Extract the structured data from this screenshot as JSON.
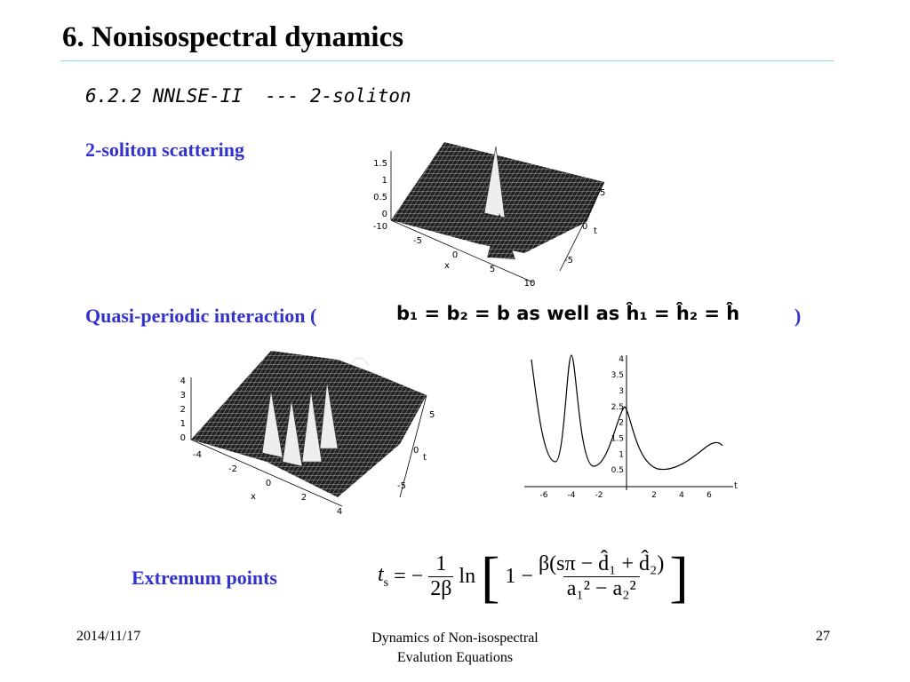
{
  "header": {
    "title": "6. Nonisospectral dynamics"
  },
  "subtitle": "6.2.2 NNLSE-II  --- 2-soliton",
  "scattering": {
    "label": "2-soliton scattering"
  },
  "plot1": {
    "z_ticks": [
      "1.5",
      "1",
      "0.5",
      "0"
    ],
    "x_ticks": [
      "-10",
      "-5",
      "0",
      "5",
      "10"
    ],
    "x_label": "x",
    "t_ticks": [
      "5",
      "0",
      "-5"
    ],
    "t_label": "t"
  },
  "quasi": {
    "prefix": "Quasi-periodic interaction (",
    "formula": "b₁ = b₂ = b as well as ĥ₁ = ĥ₂ = ĥ",
    "suffix": ")"
  },
  "plot2": {
    "z_ticks": [
      "4",
      "3",
      "2",
      "1",
      "0"
    ],
    "x_ticks": [
      "-4",
      "-2",
      "0",
      "2",
      "4"
    ],
    "x_label": "x",
    "t_ticks": [
      "5",
      "0",
      "-5"
    ],
    "t_label": "t"
  },
  "plot3": {
    "y_ticks": [
      "4",
      "3.5",
      "3",
      "2.5",
      "2",
      "1.5",
      "1",
      "0.5"
    ],
    "x_ticks": [
      "-6",
      "-4",
      "-2",
      "2",
      "4",
      "6"
    ],
    "x_label": "t"
  },
  "extremum": {
    "label": "Extremum points",
    "lhs": "t",
    "lhs_sub": "s",
    "eq": "= −",
    "num": "1",
    "den": "2β",
    "ln": "ln",
    "one_minus": "1 −",
    "frac_num": "β(sπ − d̂₁ + d̂₂)",
    "frac_den": "a₁² − a₂²"
  },
  "footer": {
    "date": "2014/11/17",
    "center_line1": "Dynamics of Non-isospectral",
    "center_line2": "Evalution Equations",
    "page": "27"
  }
}
